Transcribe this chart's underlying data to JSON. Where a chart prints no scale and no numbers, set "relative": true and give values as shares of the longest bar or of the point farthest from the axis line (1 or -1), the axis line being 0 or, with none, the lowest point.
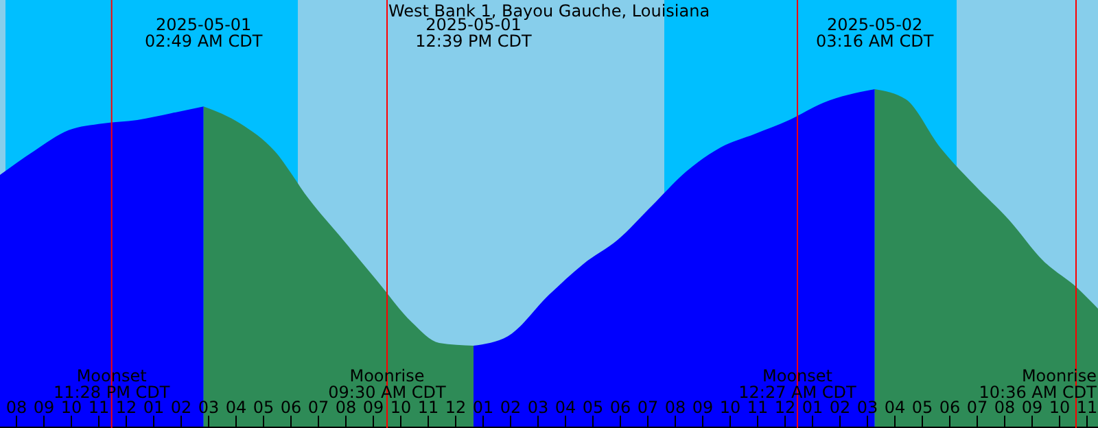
{
  "chart_data": {
    "type": "area",
    "title": "West Bank 1, Bayou Gauche, Louisiana",
    "relative": true,
    "x": [
      "2025-04-30T19:24",
      "2025-04-30T20:39",
      "2025-04-30T21:54",
      "2025-04-30T23:09",
      "2025-05-01T00:24",
      "2025-05-01T01:39",
      "2025-05-01T02:49",
      "2025-05-01T04:09",
      "2025-05-01T05:24",
      "2025-05-01T06:39",
      "2025-05-01T07:54",
      "2025-05-01T09:09",
      "2025-05-01T10:24",
      "2025-05-01T11:24",
      "2025-05-01T12:39",
      "2025-05-01T13:54",
      "2025-05-01T15:24",
      "2025-05-01T16:39",
      "2025-05-01T17:54",
      "2025-05-01T19:09",
      "2025-05-01T20:24",
      "2025-05-01T21:39",
      "2025-05-01T22:54",
      "2025-05-02T00:09",
      "2025-05-02T01:24",
      "2025-05-02T03:16",
      "2025-05-02T04:24",
      "2025-05-02T05:39",
      "2025-05-02T06:54",
      "2025-05-02T08:09",
      "2025-05-02T09:24",
      "2025-05-02T10:39",
      "2025-05-02T11:24"
    ],
    "series": [
      {
        "color": "#0000ff",
        "values": [
          0.747,
          0.818,
          0.879,
          0.899,
          0.909,
          0.929,
          0.949,
          null,
          null,
          null,
          null,
          null,
          null,
          null,
          0.243,
          0.271,
          0.393,
          0.484,
          0.555,
          0.656,
          0.757,
          0.828,
          0.868,
          0.909,
          0.96,
          1,
          null,
          null,
          null,
          null,
          null,
          null,
          null
        ]
      },
      {
        "color": "#2e8b57",
        "values": [
          null,
          null,
          null,
          null,
          null,
          null,
          0.949,
          0.899,
          0.818,
          0.676,
          0.555,
          0.433,
          0.312,
          0.251,
          0.243,
          null,
          null,
          null,
          null,
          null,
          null,
          null,
          null,
          null,
          null,
          1,
          0.97,
          0.828,
          0.717,
          0.615,
          0.494,
          0.413,
          0.352
        ]
      }
    ],
    "xticks": [
      {
        "value": "2025-04-30T20:00",
        "label": "08"
      },
      {
        "value": "2025-04-30T21:00",
        "label": "09"
      },
      {
        "value": "2025-04-30T22:00",
        "label": "10"
      },
      {
        "value": "2025-04-30T23:00",
        "label": "11"
      },
      {
        "value": "2025-05-01T00:00",
        "label": "12"
      },
      {
        "value": "2025-05-01T01:00",
        "label": "01"
      },
      {
        "value": "2025-05-01T02:00",
        "label": "02"
      },
      {
        "value": "2025-05-01T03:00",
        "label": "03"
      },
      {
        "value": "2025-05-01T04:00",
        "label": "04"
      },
      {
        "value": "2025-05-01T05:00",
        "label": "05"
      },
      {
        "value": "2025-05-01T06:00",
        "label": "06"
      },
      {
        "value": "2025-05-01T07:00",
        "label": "07"
      },
      {
        "value": "2025-05-01T08:00",
        "label": "08"
      },
      {
        "value": "2025-05-01T09:00",
        "label": "09"
      },
      {
        "value": "2025-05-01T10:00",
        "label": "10"
      },
      {
        "value": "2025-05-01T11:00",
        "label": "11"
      },
      {
        "value": "2025-05-01T12:00",
        "label": "12"
      },
      {
        "value": "2025-05-01T13:00",
        "label": "01"
      },
      {
        "value": "2025-05-01T14:00",
        "label": "02"
      },
      {
        "value": "2025-05-01T15:00",
        "label": "03"
      },
      {
        "value": "2025-05-01T16:00",
        "label": "04"
      },
      {
        "value": "2025-05-01T17:00",
        "label": "05"
      },
      {
        "value": "2025-05-01T18:00",
        "label": "06"
      },
      {
        "value": "2025-05-01T19:00",
        "label": "07"
      },
      {
        "value": "2025-05-01T20:00",
        "label": "08"
      },
      {
        "value": "2025-05-01T21:00",
        "label": "09"
      },
      {
        "value": "2025-05-01T22:00",
        "label": "10"
      },
      {
        "value": "2025-05-01T23:00",
        "label": "11"
      },
      {
        "value": "2025-05-02T00:00",
        "label": "12"
      },
      {
        "value": "2025-05-02T01:00",
        "label": "01"
      },
      {
        "value": "2025-05-02T02:00",
        "label": "02"
      },
      {
        "value": "2025-05-02T03:00",
        "label": "03"
      },
      {
        "value": "2025-05-02T04:00",
        "label": "04"
      },
      {
        "value": "2025-05-02T05:00",
        "label": "05"
      },
      {
        "value": "2025-05-02T06:00",
        "label": "06"
      },
      {
        "value": "2025-05-02T07:00",
        "label": "07"
      },
      {
        "value": "2025-05-02T08:00",
        "label": "08"
      },
      {
        "value": "2025-05-02T09:00",
        "label": "09"
      },
      {
        "value": "2025-05-02T10:00",
        "label": "10"
      },
      {
        "value": "2025-05-02T11:00",
        "label": "11"
      }
    ],
    "xlim": [
      "2025-04-30T19:24",
      "2025-05-02T11:24"
    ],
    "bands": [
      {
        "axis": "x",
        "from": "2025-04-30T19:24",
        "to": "2025-04-30T19:36",
        "color": "#87ceeb"
      },
      {
        "axis": "x",
        "from": "2025-04-30T19:36",
        "to": "2025-05-01T06:15",
        "color": "#00bfff"
      },
      {
        "axis": "x",
        "from": "2025-05-01T06:15",
        "to": "2025-05-01T19:36",
        "color": "#87ceeb"
      },
      {
        "axis": "x",
        "from": "2025-05-01T19:36",
        "to": "2025-05-02T06:15",
        "color": "#00bfff"
      },
      {
        "axis": "x",
        "from": "2025-05-02T06:15",
        "to": "2025-05-02T11:24",
        "color": "#87ceeb"
      }
    ],
    "ref_lines": [
      {
        "axis": "x",
        "value": "2025-04-30T23:28",
        "label": "Moonset\n11:28 PM CDT",
        "color": "#ff0000"
      },
      {
        "axis": "x",
        "value": "2025-05-01T09:30",
        "label": "Moonrise\n09:30 AM CDT",
        "color": "#ff0000"
      },
      {
        "axis": "x",
        "value": "2025-05-02T00:27",
        "label": "Moonset\n12:27 AM CDT",
        "color": "#ff0000"
      },
      {
        "axis": "x",
        "value": "2025-05-02T10:36",
        "label": "Moonrise\n10:36 AM CDT",
        "color": "#ff0000"
      }
    ],
    "annotations": [
      "2025-05-01\n02:49 AM CDT",
      "2025-05-01\n12:39 PM CDT",
      "2025-05-02\n03:16 AM CDT"
    ]
  }
}
